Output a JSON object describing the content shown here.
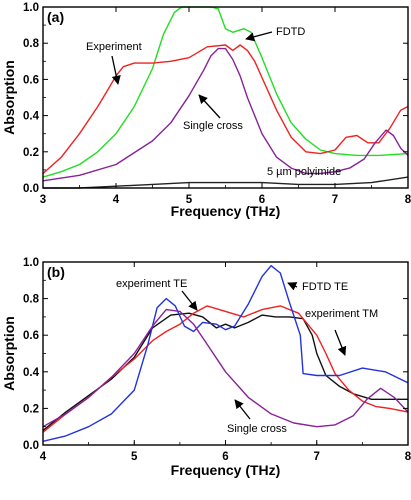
{
  "chart_data": [
    {
      "type": "line",
      "panel_label": "(a)",
      "xlabel": "Frequency (THz)",
      "ylabel": "Absorption",
      "xlim": [
        3,
        8
      ],
      "ylim": [
        0,
        1.0
      ],
      "xticks": [
        "3",
        "4",
        "5",
        "6",
        "7",
        "8"
      ],
      "yticks": [
        "0.0",
        "0.2",
        "0.4",
        "0.6",
        "0.8",
        "1.0"
      ],
      "grid": false,
      "legend": "none (curves labeled by annotations)",
      "series": [
        {
          "name": "FDTD",
          "color": "#22dd22",
          "x": [
            3.0,
            3.25,
            3.5,
            3.75,
            4.0,
            4.25,
            4.5,
            4.65,
            4.8,
            4.9,
            5.0,
            5.1,
            5.2,
            5.3,
            5.4,
            5.5,
            5.6,
            5.75,
            5.85,
            6.0,
            6.2,
            6.4,
            6.6,
            6.8,
            7.0,
            7.3,
            7.6,
            8.0
          ],
          "y": [
            0.06,
            0.09,
            0.13,
            0.2,
            0.3,
            0.45,
            0.66,
            0.85,
            0.97,
            1.0,
            1.0,
            1.0,
            1.0,
            1.0,
            0.99,
            0.88,
            0.86,
            0.88,
            0.86,
            0.72,
            0.52,
            0.36,
            0.27,
            0.21,
            0.19,
            0.18,
            0.18,
            0.19
          ]
        },
        {
          "name": "Experiment",
          "color": "#ee2222",
          "x": [
            3.0,
            3.25,
            3.5,
            3.75,
            3.9,
            4.0,
            4.1,
            4.25,
            4.5,
            4.75,
            5.0,
            5.25,
            5.5,
            5.6,
            5.7,
            5.8,
            5.9,
            6.0,
            6.2,
            6.4,
            6.6,
            6.8,
            7.0,
            7.15,
            7.3,
            7.45,
            7.6,
            7.75,
            7.9,
            8.0
          ],
          "y": [
            0.08,
            0.17,
            0.3,
            0.45,
            0.55,
            0.62,
            0.67,
            0.69,
            0.69,
            0.7,
            0.72,
            0.78,
            0.79,
            0.76,
            0.79,
            0.76,
            0.7,
            0.61,
            0.43,
            0.28,
            0.2,
            0.19,
            0.21,
            0.28,
            0.29,
            0.25,
            0.25,
            0.33,
            0.43,
            0.45
          ]
        },
        {
          "name": "Single cross",
          "color": "#882299",
          "x": [
            3.0,
            3.5,
            4.0,
            4.5,
            4.75,
            5.0,
            5.2,
            5.3,
            5.4,
            5.5,
            5.6,
            5.7,
            5.8,
            6.0,
            6.2,
            6.4,
            6.6,
            6.8,
            7.0,
            7.2,
            7.4,
            7.55,
            7.7,
            7.8,
            7.9,
            8.0
          ],
          "y": [
            0.04,
            0.07,
            0.13,
            0.26,
            0.36,
            0.51,
            0.65,
            0.73,
            0.77,
            0.77,
            0.71,
            0.62,
            0.5,
            0.3,
            0.17,
            0.11,
            0.08,
            0.08,
            0.09,
            0.11,
            0.16,
            0.25,
            0.32,
            0.29,
            0.22,
            0.18
          ]
        },
        {
          "name": "5 µm polyimide",
          "color": "#222222",
          "x": [
            3.0,
            3.5,
            4.0,
            4.5,
            5.0,
            5.5,
            6.0,
            6.5,
            7.0,
            7.5,
            8.0
          ],
          "y": [
            0.0,
            0.0,
            0.01,
            0.02,
            0.03,
            0.03,
            0.03,
            0.02,
            0.02,
            0.03,
            0.06
          ]
        }
      ],
      "annotations": [
        {
          "text": "FDTD",
          "series": "FDTD"
        },
        {
          "text": "Experiment",
          "series": "Experiment"
        },
        {
          "text": "Single cross",
          "series": "Single cross"
        },
        {
          "text": "5 µm polyimide",
          "series": "5 µm polyimide"
        }
      ]
    },
    {
      "type": "line",
      "panel_label": "(b)",
      "xlabel": "Frequency (THz)",
      "ylabel": "Absorption",
      "xlim": [
        4,
        8
      ],
      "ylim": [
        0,
        1.0
      ],
      "xticks": [
        "4",
        "5",
        "6",
        "7",
        "8"
      ],
      "yticks": [
        "0.0",
        "0.2",
        "0.4",
        "0.6",
        "0.8",
        "1.0"
      ],
      "grid": false,
      "legend": "none (curves labeled by annotations)",
      "series": [
        {
          "name": "experiment TE",
          "color": "#111111",
          "x": [
            4.0,
            4.25,
            4.5,
            4.75,
            5.0,
            5.2,
            5.4,
            5.6,
            5.75,
            5.9,
            6.0,
            6.1,
            6.25,
            6.4,
            6.55,
            6.7,
            6.85,
            6.95,
            7.0,
            7.1,
            7.25,
            7.4,
            7.6,
            7.8,
            8.0
          ],
          "y": [
            0.08,
            0.18,
            0.27,
            0.36,
            0.48,
            0.64,
            0.71,
            0.72,
            0.7,
            0.64,
            0.66,
            0.64,
            0.67,
            0.71,
            0.7,
            0.7,
            0.69,
            0.6,
            0.5,
            0.38,
            0.32,
            0.28,
            0.25,
            0.25,
            0.25
          ]
        },
        {
          "name": "experiment TM",
          "color": "#ee2222",
          "x": [
            4.0,
            4.25,
            4.5,
            4.75,
            5.0,
            5.2,
            5.35,
            5.5,
            5.65,
            5.8,
            6.0,
            6.2,
            6.4,
            6.6,
            6.8,
            7.0,
            7.1,
            7.2,
            7.35,
            7.5,
            7.65,
            7.8,
            8.0
          ],
          "y": [
            0.07,
            0.17,
            0.26,
            0.37,
            0.47,
            0.57,
            0.62,
            0.66,
            0.72,
            0.76,
            0.73,
            0.7,
            0.74,
            0.76,
            0.72,
            0.6,
            0.5,
            0.39,
            0.3,
            0.24,
            0.21,
            0.2,
            0.18
          ]
        },
        {
          "name": "FDTD TE",
          "color": "#2233dd",
          "x": [
            4.0,
            4.25,
            4.5,
            4.75,
            5.0,
            5.15,
            5.25,
            5.35,
            5.45,
            5.55,
            5.65,
            5.75,
            5.9,
            6.0,
            6.1,
            6.25,
            6.4,
            6.5,
            6.6,
            6.7,
            6.82,
            6.85,
            7.0,
            7.25,
            7.5,
            7.75,
            8.0
          ],
          "y": [
            0.02,
            0.05,
            0.1,
            0.17,
            0.3,
            0.55,
            0.75,
            0.8,
            0.76,
            0.65,
            0.62,
            0.67,
            0.66,
            0.63,
            0.65,
            0.77,
            0.92,
            0.98,
            0.94,
            0.78,
            0.6,
            0.39,
            0.38,
            0.38,
            0.42,
            0.4,
            0.34
          ]
        },
        {
          "name": "Single cross",
          "color": "#882299",
          "x": [
            4.0,
            4.25,
            4.5,
            4.75,
            5.0,
            5.2,
            5.35,
            5.5,
            5.65,
            5.8,
            6.0,
            6.25,
            6.5,
            6.75,
            7.0,
            7.2,
            7.4,
            7.55,
            7.7,
            7.85,
            8.0
          ],
          "y": [
            0.1,
            0.17,
            0.26,
            0.37,
            0.5,
            0.65,
            0.74,
            0.73,
            0.66,
            0.55,
            0.4,
            0.26,
            0.17,
            0.12,
            0.1,
            0.11,
            0.16,
            0.25,
            0.31,
            0.26,
            0.18
          ]
        }
      ],
      "annotations": [
        {
          "text": "experiment TE",
          "series": "experiment TE"
        },
        {
          "text": "FDTD TE",
          "series": "FDTD TE"
        },
        {
          "text": "experiment TM",
          "series": "experiment TM"
        },
        {
          "text": "Single cross",
          "series": "Single cross"
        }
      ]
    }
  ]
}
